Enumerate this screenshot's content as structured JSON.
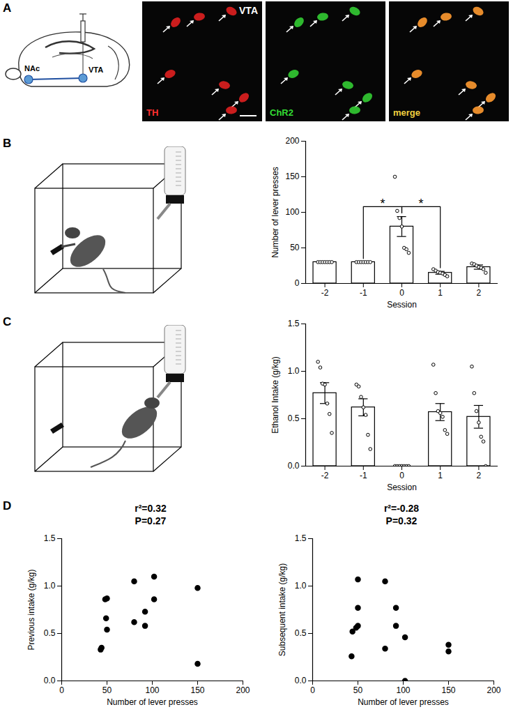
{
  "figure": {
    "panel_labels": [
      "A",
      "B",
      "C",
      "D"
    ],
    "panel_A": {
      "region_labels": [
        "NAc",
        "VTA"
      ],
      "image_label": "VTA",
      "channels": [
        {
          "label": "TH",
          "color": "#ff3030"
        },
        {
          "label": "ChR2",
          "color": "#33dd33"
        },
        {
          "label": "merge",
          "color": "#f0d040"
        }
      ]
    }
  },
  "chart_data": [
    {
      "type": "bar",
      "categories": [
        "-2",
        "-1",
        "0",
        "1",
        "2"
      ],
      "values": [
        30,
        30,
        80,
        15,
        23
      ],
      "errors": [
        0,
        0,
        14,
        2,
        3
      ],
      "points": [
        [
          30,
          30,
          30,
          30,
          30,
          30,
          30
        ],
        [
          30,
          30,
          30,
          30,
          30,
          30,
          30
        ],
        [
          150,
          102,
          92,
          80,
          50,
          48,
          43
        ],
        [
          20,
          18,
          16,
          15,
          14,
          12,
          10
        ],
        [
          28,
          27,
          25,
          23,
          22,
          20,
          15
        ]
      ],
      "color": "#ffffff",
      "x_label": "Session",
      "y_label": "Number of lever presses",
      "ylim": [
        0,
        200
      ],
      "yticks": [
        0,
        50,
        100,
        150,
        200
      ],
      "annotations": [
        {
          "text": "*",
          "from": "-1",
          "to": "0"
        },
        {
          "text": "*",
          "from": "0",
          "to": "1"
        }
      ]
    },
    {
      "type": "bar",
      "categories": [
        "-2",
        "-1",
        "0",
        "1",
        "2"
      ],
      "values": [
        0.77,
        0.62,
        0,
        0.57,
        0.52
      ],
      "errors": [
        0.11,
        0.09,
        0,
        0.09,
        0.12
      ],
      "points": [
        [
          1.1,
          1.04,
          0.87,
          0.86,
          0.66,
          0.55,
          0.35
        ],
        [
          0.86,
          0.84,
          0.73,
          0.62,
          0.54,
          0.33,
          0.18
        ],
        [
          0,
          0,
          0,
          0,
          0,
          0,
          0
        ],
        [
          1.07,
          0.77,
          0.58,
          0.56,
          0.52,
          0.38,
          0.34
        ],
        [
          1.05,
          0.77,
          0.58,
          0.46,
          0.31,
          0.26,
          0.0
        ]
      ],
      "color": "#ffffff",
      "x_label": "Session",
      "y_label": "Ethanol Intake (g/kg)",
      "ylim": [
        0,
        1.5
      ],
      "yticks": [
        {
          "value": 0,
          "label": "0.0"
        },
        0.5,
        {
          "value": 1,
          "label": "1.0"
        },
        1.5
      ]
    },
    {
      "type": "scatter",
      "title": "r²=0.32",
      "subtitle": "P=0.27",
      "x": [
        43,
        44,
        48,
        50,
        49,
        50,
        80,
        80,
        92,
        92,
        102,
        102,
        150,
        150
      ],
      "y": [
        0.33,
        0.35,
        0.86,
        0.87,
        0.66,
        0.54,
        1.05,
        0.62,
        0.58,
        0.73,
        1.1,
        0.86,
        0.98,
        0.18
      ],
      "color": "#000000",
      "marker": "circle",
      "x_label": "Number of lever presses",
      "y_label": "Previous intake (g/kg)",
      "xlim": [
        0,
        200
      ],
      "xticks": [
        0,
        50,
        100,
        150,
        200
      ],
      "ylim": [
        0,
        1.5
      ],
      "yticks": [
        {
          "value": 0,
          "label": "0.0"
        },
        0.5,
        {
          "value": 1,
          "label": "1.0"
        },
        1.5
      ]
    },
    {
      "type": "scatter",
      "title": "r²=-0.28",
      "subtitle": "P=0.32",
      "x": [
        43,
        44,
        48,
        50,
        50,
        50,
        80,
        80,
        92,
        92,
        102,
        102,
        150,
        150
      ],
      "y": [
        0.26,
        0.52,
        0.56,
        0.58,
        0.77,
        1.07,
        1.05,
        0.34,
        0.77,
        0.58,
        0.46,
        0.0,
        0.38,
        0.31
      ],
      "color": "#000000",
      "marker": "circle",
      "x_label": "Number of lever presses",
      "y_label": "Subsequent intake (g/kg)",
      "xlim": [
        0,
        200
      ],
      "xticks": [
        0,
        50,
        100,
        150,
        200
      ],
      "ylim": [
        0,
        1.5
      ],
      "yticks": [
        {
          "value": 0,
          "label": "0.0"
        },
        0.5,
        {
          "value": 1,
          "label": "1.0"
        },
        1.5
      ]
    }
  ]
}
